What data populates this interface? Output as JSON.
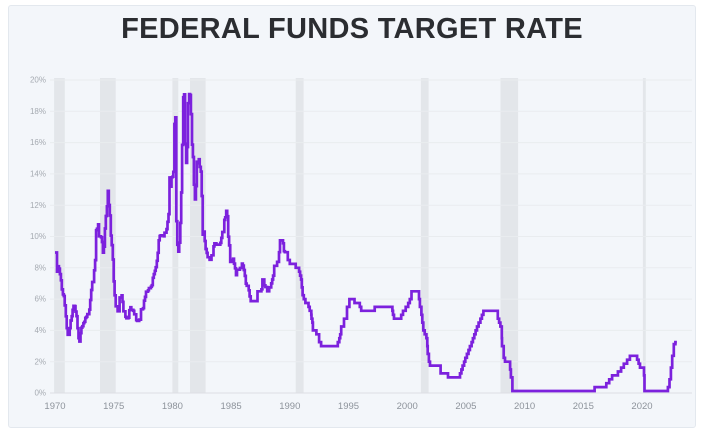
{
  "page": {
    "background": "#ffffff"
  },
  "card": {
    "background": "#f3f6fa",
    "border_color": "#e3e8ee"
  },
  "chart_data": {
    "type": "line",
    "title": "FEDERAL FUNDS TARGET RATE",
    "series_name": "Federal funds target rate",
    "unit": "%",
    "legend_position": "none",
    "grid": true,
    "x_range": [
      1969.66,
      2024.26
    ],
    "y_range": [
      0,
      20
    ],
    "x_ticks": [
      1970,
      1975,
      1980,
      1985,
      1990,
      1995,
      2000,
      2005,
      2010,
      2015,
      2020
    ],
    "y_ticks": [
      0,
      2,
      4,
      6,
      8,
      10,
      12,
      14,
      16,
      18,
      20
    ],
    "y_tick_suffix": "%",
    "line_color": "#7c21dd",
    "recession_band_color": "#e3e6ea",
    "grid_color": "#e9ecef",
    "zero_line_color": "#dcdfe4",
    "y_label_color": "#a5aab1",
    "x_label_color": "#8d939b",
    "title_color": "#2b2d31",
    "recessions": [
      [
        1969.92,
        1970.83
      ],
      [
        1973.83,
        1975.17
      ],
      [
        1980.0,
        1980.5
      ],
      [
        1981.5,
        1982.83
      ],
      [
        1990.5,
        1991.17
      ],
      [
        2001.17,
        2001.83
      ],
      [
        2007.95,
        2009.45
      ],
      [
        2020.08,
        2020.33
      ]
    ],
    "step": true,
    "points": [
      [
        1970.0,
        8.98
      ],
      [
        1970.17,
        7.76
      ],
      [
        1970.25,
        8.1
      ],
      [
        1970.33,
        7.95
      ],
      [
        1970.42,
        7.6
      ],
      [
        1970.5,
        7.2
      ],
      [
        1970.58,
        6.62
      ],
      [
        1970.67,
        6.3
      ],
      [
        1970.75,
        6.2
      ],
      [
        1970.83,
        5.6
      ],
      [
        1970.92,
        4.9
      ],
      [
        1971.0,
        4.14
      ],
      [
        1971.08,
        3.72
      ],
      [
        1971.25,
        4.15
      ],
      [
        1971.33,
        4.63
      ],
      [
        1971.42,
        4.91
      ],
      [
        1971.5,
        5.31
      ],
      [
        1971.58,
        5.57
      ],
      [
        1971.67,
        5.55
      ],
      [
        1971.75,
        5.2
      ],
      [
        1971.83,
        4.91
      ],
      [
        1971.92,
        4.14
      ],
      [
        1972.0,
        3.5
      ],
      [
        1972.08,
        3.29
      ],
      [
        1972.17,
        3.83
      ],
      [
        1972.25,
        4.17
      ],
      [
        1972.33,
        4.27
      ],
      [
        1972.42,
        4.46
      ],
      [
        1972.5,
        4.55
      ],
      [
        1972.58,
        4.8
      ],
      [
        1972.67,
        4.87
      ],
      [
        1972.75,
        5.04
      ],
      [
        1972.92,
        5.33
      ],
      [
        1973.0,
        5.94
      ],
      [
        1973.08,
        6.58
      ],
      [
        1973.17,
        7.09
      ],
      [
        1973.33,
        7.84
      ],
      [
        1973.42,
        8.49
      ],
      [
        1973.5,
        10.4
      ],
      [
        1973.58,
        10.5
      ],
      [
        1973.67,
        10.78
      ],
      [
        1973.75,
        10.01
      ],
      [
        1973.92,
        9.95
      ],
      [
        1974.0,
        9.65
      ],
      [
        1974.08,
        8.97
      ],
      [
        1974.17,
        9.35
      ],
      [
        1974.25,
        10.51
      ],
      [
        1974.33,
        11.31
      ],
      [
        1974.42,
        11.93
      ],
      [
        1974.5,
        12.92
      ],
      [
        1974.58,
        12.01
      ],
      [
        1974.67,
        11.34
      ],
      [
        1974.75,
        10.06
      ],
      [
        1974.83,
        9.45
      ],
      [
        1974.92,
        8.53
      ],
      [
        1975.0,
        7.13
      ],
      [
        1975.08,
        6.24
      ],
      [
        1975.17,
        5.54
      ],
      [
        1975.33,
        5.22
      ],
      [
        1975.5,
        6.1
      ],
      [
        1975.67,
        6.24
      ],
      [
        1975.75,
        5.82
      ],
      [
        1975.83,
        5.22
      ],
      [
        1976.0,
        4.87
      ],
      [
        1976.08,
        4.77
      ],
      [
        1976.25,
        4.82
      ],
      [
        1976.33,
        5.29
      ],
      [
        1976.42,
        5.48
      ],
      [
        1976.5,
        5.31
      ],
      [
        1976.67,
        5.25
      ],
      [
        1976.75,
        5.03
      ],
      [
        1976.92,
        4.65
      ],
      [
        1977.0,
        4.61
      ],
      [
        1977.17,
        4.69
      ],
      [
        1977.33,
        5.35
      ],
      [
        1977.5,
        5.42
      ],
      [
        1977.58,
        5.9
      ],
      [
        1977.67,
        6.14
      ],
      [
        1977.75,
        6.47
      ],
      [
        1977.92,
        6.56
      ],
      [
        1978.0,
        6.7
      ],
      [
        1978.17,
        6.79
      ],
      [
        1978.25,
        6.89
      ],
      [
        1978.33,
        7.36
      ],
      [
        1978.42,
        7.6
      ],
      [
        1978.5,
        7.81
      ],
      [
        1978.58,
        8.04
      ],
      [
        1978.67,
        8.45
      ],
      [
        1978.75,
        8.96
      ],
      [
        1978.83,
        9.76
      ],
      [
        1978.92,
        10.03
      ],
      [
        1979.0,
        10.07
      ],
      [
        1979.25,
        10.01
      ],
      [
        1979.33,
        10.24
      ],
      [
        1979.5,
        10.47
      ],
      [
        1979.58,
        10.94
      ],
      [
        1979.67,
        11.43
      ],
      [
        1979.75,
        13.77
      ],
      [
        1979.83,
        13.18
      ],
      [
        1979.92,
        13.78
      ],
      [
        1980.0,
        13.82
      ],
      [
        1980.08,
        14.13
      ],
      [
        1980.17,
        17.19
      ],
      [
        1980.25,
        17.61
      ],
      [
        1980.33,
        10.98
      ],
      [
        1980.42,
        9.47
      ],
      [
        1980.5,
        9.03
      ],
      [
        1980.58,
        9.61
      ],
      [
        1980.67,
        10.87
      ],
      [
        1980.75,
        12.81
      ],
      [
        1980.83,
        15.85
      ],
      [
        1980.92,
        18.9
      ],
      [
        1981.0,
        19.08
      ],
      [
        1981.08,
        15.93
      ],
      [
        1981.17,
        14.7
      ],
      [
        1981.25,
        15.72
      ],
      [
        1981.33,
        18.52
      ],
      [
        1981.42,
        19.1
      ],
      [
        1981.5,
        19.04
      ],
      [
        1981.58,
        17.82
      ],
      [
        1981.67,
        15.87
      ],
      [
        1981.75,
        15.08
      ],
      [
        1981.83,
        13.31
      ],
      [
        1981.92,
        12.37
      ],
      [
        1982.0,
        13.22
      ],
      [
        1982.08,
        14.78
      ],
      [
        1982.17,
        14.68
      ],
      [
        1982.25,
        14.94
      ],
      [
        1982.33,
        14.45
      ],
      [
        1982.42,
        14.15
      ],
      [
        1982.5,
        12.59
      ],
      [
        1982.58,
        10.12
      ],
      [
        1982.67,
        10.31
      ],
      [
        1982.75,
        9.71
      ],
      [
        1982.83,
        9.2
      ],
      [
        1982.92,
        8.95
      ],
      [
        1983.0,
        8.68
      ],
      [
        1983.17,
        8.51
      ],
      [
        1983.33,
        8.8
      ],
      [
        1983.5,
        9.37
      ],
      [
        1983.58,
        9.56
      ],
      [
        1983.75,
        9.48
      ],
      [
        1984.08,
        9.59
      ],
      [
        1984.17,
        9.91
      ],
      [
        1984.25,
        10.29
      ],
      [
        1984.42,
        11.06
      ],
      [
        1984.5,
        11.23
      ],
      [
        1984.58,
        11.64
      ],
      [
        1984.67,
        11.3
      ],
      [
        1984.75,
        9.99
      ],
      [
        1984.83,
        9.43
      ],
      [
        1984.92,
        8.38
      ],
      [
        1985.08,
        8.5
      ],
      [
        1985.17,
        8.58
      ],
      [
        1985.25,
        8.27
      ],
      [
        1985.33,
        7.97
      ],
      [
        1985.42,
        7.53
      ],
      [
        1985.5,
        7.88
      ],
      [
        1985.75,
        7.99
      ],
      [
        1985.92,
        8.27
      ],
      [
        1986.0,
        8.14
      ],
      [
        1986.08,
        7.86
      ],
      [
        1986.17,
        7.48
      ],
      [
        1986.25,
        6.99
      ],
      [
        1986.33,
        6.85
      ],
      [
        1986.5,
        6.56
      ],
      [
        1986.58,
        6.17
      ],
      [
        1986.67,
        5.875
      ],
      [
        1987.25,
        6.5
      ],
      [
        1987.58,
        6.625
      ],
      [
        1987.67,
        7.25
      ],
      [
        1987.83,
        6.875
      ],
      [
        1987.92,
        6.77
      ],
      [
        1988.08,
        6.5
      ],
      [
        1988.25,
        6.75
      ],
      [
        1988.42,
        7.0
      ],
      [
        1988.5,
        7.25
      ],
      [
        1988.58,
        7.5
      ],
      [
        1988.67,
        8.125
      ],
      [
        1988.92,
        8.375
      ],
      [
        1989.08,
        9.0
      ],
      [
        1989.17,
        9.75
      ],
      [
        1989.42,
        9.5625
      ],
      [
        1989.5,
        9.0625
      ],
      [
        1989.58,
        9.0
      ],
      [
        1989.83,
        8.5
      ],
      [
        1990.0,
        8.25
      ],
      [
        1990.5,
        8.0
      ],
      [
        1990.79,
        7.75
      ],
      [
        1990.88,
        7.5
      ],
      [
        1990.96,
        7.25
      ],
      [
        1991.02,
        6.75
      ],
      [
        1991.09,
        6.25
      ],
      [
        1991.19,
        6.0
      ],
      [
        1991.33,
        5.75
      ],
      [
        1991.59,
        5.5
      ],
      [
        1991.7,
        5.25
      ],
      [
        1991.83,
        5.0
      ],
      [
        1991.85,
        4.75
      ],
      [
        1991.93,
        4.5
      ],
      [
        1991.97,
        4.0
      ],
      [
        1992.27,
        3.75
      ],
      [
        1992.5,
        3.25
      ],
      [
        1992.67,
        3.0
      ],
      [
        1994.09,
        3.25
      ],
      [
        1994.22,
        3.5
      ],
      [
        1994.29,
        3.75
      ],
      [
        1994.38,
        4.25
      ],
      [
        1994.62,
        4.75
      ],
      [
        1994.87,
        5.5
      ],
      [
        1995.08,
        6.0
      ],
      [
        1995.51,
        5.75
      ],
      [
        1995.96,
        5.5
      ],
      [
        1996.08,
        5.25
      ],
      [
        1997.23,
        5.5
      ],
      [
        1998.74,
        5.25
      ],
      [
        1998.79,
        5.0
      ],
      [
        1998.88,
        4.75
      ],
      [
        1999.49,
        5.0
      ],
      [
        1999.64,
        5.25
      ],
      [
        1999.87,
        5.5
      ],
      [
        2000.09,
        5.75
      ],
      [
        2000.22,
        6.0
      ],
      [
        2000.37,
        6.5
      ],
      [
        2001.01,
        6.0
      ],
      [
        2001.08,
        5.5
      ],
      [
        2001.21,
        5.0
      ],
      [
        2001.29,
        4.5
      ],
      [
        2001.37,
        4.0
      ],
      [
        2001.49,
        3.75
      ],
      [
        2001.64,
        3.5
      ],
      [
        2001.71,
        3.0
      ],
      [
        2001.75,
        2.5
      ],
      [
        2001.85,
        2.0
      ],
      [
        2001.94,
        1.75
      ],
      [
        2002.85,
        1.25
      ],
      [
        2003.48,
        1.0
      ],
      [
        2004.5,
        1.25
      ],
      [
        2004.62,
        1.5
      ],
      [
        2004.72,
        1.75
      ],
      [
        2004.85,
        2.0
      ],
      [
        2004.95,
        2.25
      ],
      [
        2005.09,
        2.5
      ],
      [
        2005.22,
        2.75
      ],
      [
        2005.34,
        3.0
      ],
      [
        2005.49,
        3.25
      ],
      [
        2005.6,
        3.5
      ],
      [
        2005.72,
        3.75
      ],
      [
        2005.83,
        4.0
      ],
      [
        2005.95,
        4.25
      ],
      [
        2006.08,
        4.5
      ],
      [
        2006.24,
        4.75
      ],
      [
        2006.36,
        5.0
      ],
      [
        2006.49,
        5.25
      ],
      [
        2007.72,
        4.75
      ],
      [
        2007.83,
        4.5
      ],
      [
        2007.94,
        4.25
      ],
      [
        2008.06,
        3.5
      ],
      [
        2008.08,
        3.0
      ],
      [
        2008.22,
        2.25
      ],
      [
        2008.33,
        2.0
      ],
      [
        2008.77,
        1.5
      ],
      [
        2008.83,
        1.0
      ],
      [
        2008.96,
        0.125
      ],
      [
        2015.96,
        0.375
      ],
      [
        2016.96,
        0.625
      ],
      [
        2017.21,
        0.875
      ],
      [
        2017.45,
        1.125
      ],
      [
        2017.95,
        1.375
      ],
      [
        2018.22,
        1.625
      ],
      [
        2018.45,
        1.875
      ],
      [
        2018.73,
        2.125
      ],
      [
        2018.97,
        2.375
      ],
      [
        2019.58,
        2.125
      ],
      [
        2019.71,
        1.875
      ],
      [
        2019.83,
        1.625
      ],
      [
        2020.17,
        1.125
      ],
      [
        2020.21,
        0.125
      ],
      [
        2022.21,
        0.375
      ],
      [
        2022.34,
        0.875
      ],
      [
        2022.46,
        1.625
      ],
      [
        2022.57,
        2.375
      ],
      [
        2022.71,
        3.125
      ],
      [
        2022.85,
        3.25
      ]
    ]
  }
}
